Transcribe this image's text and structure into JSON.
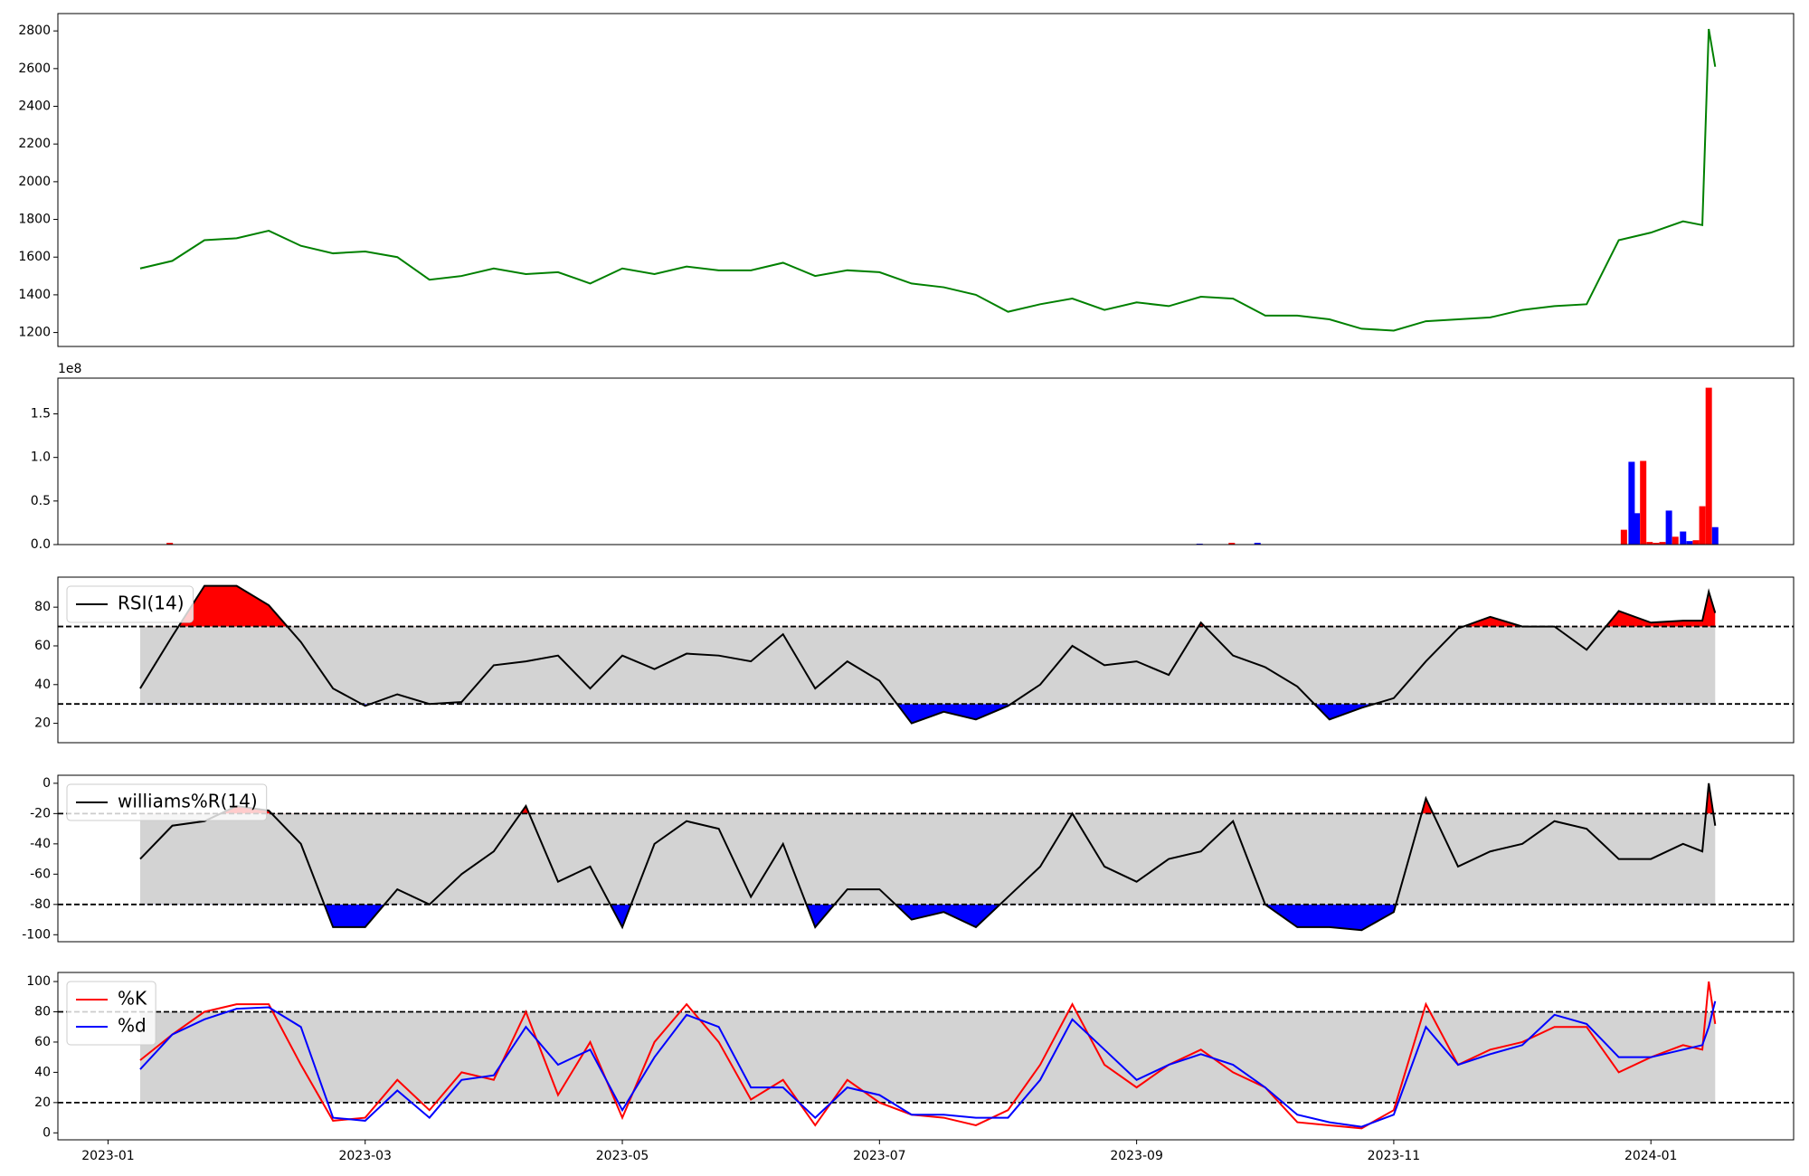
{
  "chart_data": [
    {
      "type": "line",
      "xlim": [
        -0.39,
        13.11
      ],
      "ylim": [
        1126,
        2892
      ],
      "yticks": [
        1200,
        1400,
        1600,
        1800,
        2000,
        2200,
        2400,
        2600,
        2800
      ],
      "x": [
        0.25,
        0.5,
        0.75,
        1,
        1.25,
        1.5,
        1.75,
        2,
        2.25,
        2.5,
        2.75,
        3,
        3.25,
        3.5,
        3.75,
        4,
        4.25,
        4.5,
        4.75,
        5,
        5.25,
        5.5,
        5.75,
        6,
        6.25,
        6.5,
        6.75,
        7,
        7.25,
        7.5,
        7.75,
        8,
        8.25,
        8.5,
        8.75,
        9,
        9.25,
        9.5,
        9.75,
        10,
        10.25,
        10.5,
        10.75,
        11,
        11.25,
        11.5,
        11.75,
        12,
        12.25,
        12.4,
        12.45,
        12.5
      ],
      "series": [
        {
          "color": "#008000",
          "values": [
            1540,
            1580,
            1690,
            1700,
            1740,
            1660,
            1620,
            1630,
            1600,
            1480,
            1500,
            1540,
            1510,
            1520,
            1460,
            1540,
            1510,
            1550,
            1530,
            1530,
            1570,
            1500,
            1530,
            1520,
            1460,
            1440,
            1400,
            1310,
            1350,
            1380,
            1320,
            1360,
            1340,
            1390,
            1380,
            1290,
            1290,
            1270,
            1220,
            1210,
            1260,
            1270,
            1280,
            1320,
            1340,
            1350,
            1690,
            1730,
            1790,
            1770,
            2810,
            2610
          ]
        }
      ]
    },
    {
      "type": "bar",
      "xlim": [
        -0.39,
        13.11
      ],
      "ylim": [
        0,
        191000000
      ],
      "offset_label": "1e8",
      "yticks": [
        {
          "value": 0,
          "label": "0.0"
        },
        {
          "value": 50000000,
          "label": "0.5"
        },
        {
          "value": 100000000,
          "label": "1.0"
        },
        {
          "value": 150000000,
          "label": "1.5"
        }
      ],
      "x": [
        0.48,
        8.49,
        8.74,
        8.94,
        11.79,
        11.85,
        11.89,
        11.94,
        11.99,
        12.04,
        12.09,
        12.14,
        12.19,
        12.25,
        12.3,
        12.35,
        12.4,
        12.45,
        12.5
      ],
      "values": [
        2000000,
        1000000,
        2000000,
        2000000,
        17000000,
        95000000,
        36000000,
        96000000,
        3000000,
        2000000,
        3000000,
        39000000,
        9000000,
        15000000,
        4000000,
        5000000,
        44000000,
        180000000,
        20000000
      ],
      "colors": [
        "#ff0000",
        "#0000ff",
        "#ff0000",
        "#0000ff",
        "#ff0000",
        "#0000ff",
        "#0000ff",
        "#ff0000",
        "#ff0000",
        "#ff0000",
        "#ff0000",
        "#0000ff",
        "#ff0000",
        "#0000ff",
        "#0000ff",
        "#ff0000",
        "#ff0000",
        "#ff0000",
        "#0000ff"
      ]
    },
    {
      "type": "line",
      "xlim": [
        -0.39,
        13.11
      ],
      "ylim": [
        10,
        95.5
      ],
      "yticks": [
        20,
        40,
        60,
        80
      ],
      "legend": "upper left",
      "upper": 70,
      "lower": 30,
      "band_color": "#d3d3d3",
      "over_color": "#ff0000",
      "under_color": "#0000ff",
      "x": [
        0.25,
        0.5,
        0.75,
        1,
        1.25,
        1.5,
        1.75,
        2,
        2.25,
        2.5,
        2.75,
        3,
        3.25,
        3.5,
        3.75,
        4,
        4.25,
        4.5,
        4.75,
        5,
        5.25,
        5.5,
        5.75,
        6,
        6.25,
        6.5,
        6.75,
        7,
        7.25,
        7.5,
        7.75,
        8,
        8.25,
        8.5,
        8.75,
        9,
        9.25,
        9.5,
        9.75,
        10,
        10.25,
        10.5,
        10.75,
        11,
        11.25,
        11.5,
        11.75,
        12,
        12.25,
        12.4,
        12.45,
        12.5
      ],
      "series": [
        {
          "name": "RSI(14)",
          "color": "#000000",
          "values": [
            38,
            65,
            91,
            91,
            81,
            62,
            38,
            29,
            35,
            30,
            31,
            50,
            52,
            55,
            38,
            55,
            48,
            56,
            55,
            52,
            66,
            38,
            52,
            42,
            20,
            26,
            22,
            29,
            40,
            60,
            50,
            52,
            45,
            72,
            55,
            49,
            39,
            22,
            28,
            33,
            52,
            69,
            75,
            70,
            70,
            58,
            78,
            72,
            73,
            73,
            88,
            77
          ]
        }
      ]
    },
    {
      "type": "line",
      "xlim": [
        -0.39,
        13.11
      ],
      "ylim": [
        -104.6,
        5.3
      ],
      "yticks": [
        0,
        -20,
        -40,
        -60,
        -80,
        -100
      ],
      "legend": "upper left",
      "upper": -20,
      "lower": -80,
      "band_color": "#d3d3d3",
      "over_color": "#ff0000",
      "under_color": "#0000ff",
      "x": [
        0.25,
        0.5,
        0.75,
        1,
        1.25,
        1.5,
        1.75,
        2,
        2.25,
        2.5,
        2.75,
        3,
        3.25,
        3.5,
        3.75,
        4,
        4.25,
        4.5,
        4.75,
        5,
        5.25,
        5.5,
        5.75,
        6,
        6.25,
        6.5,
        6.75,
        7,
        7.25,
        7.5,
        7.75,
        8,
        8.25,
        8.5,
        8.75,
        9,
        9.25,
        9.5,
        9.75,
        10,
        10.25,
        10.5,
        10.75,
        11,
        11.25,
        11.5,
        11.75,
        12,
        12.25,
        12.4,
        12.45,
        12.5
      ],
      "series": [
        {
          "name": "williams%R(14)",
          "color": "#000000",
          "values": [
            -50,
            -28,
            -25,
            -15,
            -18,
            -40,
            -95,
            -95,
            -70,
            -80,
            -60,
            -45,
            -15,
            -65,
            -55,
            -95,
            -40,
            -25,
            -30,
            -75,
            -40,
            -95,
            -70,
            -70,
            -90,
            -85,
            -95,
            -75,
            -55,
            -20,
            -55,
            -65,
            -50,
            -45,
            -25,
            -80,
            -95,
            -95,
            -97,
            -85,
            -10,
            -55,
            -45,
            -40,
            -25,
            -30,
            -50,
            -50,
            -40,
            -45,
            0,
            -28
          ]
        }
      ]
    },
    {
      "type": "line",
      "xlim": [
        -0.39,
        13.11
      ],
      "ylim": [
        -4.6,
        106
      ],
      "yticks": [
        0,
        20,
        40,
        60,
        80,
        100
      ],
      "legend": "upper left",
      "upper": 80,
      "lower": 20,
      "band_color": "#d3d3d3",
      "xticks": [
        {
          "value": 0,
          "label": "2023-01"
        },
        {
          "value": 2,
          "label": "2023-03"
        },
        {
          "value": 4,
          "label": "2023-05"
        },
        {
          "value": 6,
          "label": "2023-07"
        },
        {
          "value": 8,
          "label": "2023-09"
        },
        {
          "value": 10,
          "label": "2023-11"
        },
        {
          "value": 12,
          "label": "2024-01"
        }
      ],
      "x": [
        0.25,
        0.5,
        0.75,
        1,
        1.25,
        1.5,
        1.75,
        2,
        2.25,
        2.5,
        2.75,
        3,
        3.25,
        3.5,
        3.75,
        4,
        4.25,
        4.5,
        4.75,
        5,
        5.25,
        5.5,
        5.75,
        6,
        6.25,
        6.5,
        6.75,
        7,
        7.25,
        7.5,
        7.75,
        8,
        8.25,
        8.5,
        8.75,
        9,
        9.25,
        9.5,
        9.75,
        10,
        10.25,
        10.5,
        10.75,
        11,
        11.25,
        11.5,
        11.75,
        12,
        12.25,
        12.4,
        12.45,
        12.5
      ],
      "series": [
        {
          "name": "%K",
          "color": "#ff0000",
          "values": [
            48,
            65,
            80,
            85,
            85,
            45,
            8,
            10,
            35,
            15,
            40,
            35,
            80,
            25,
            60,
            10,
            60,
            85,
            60,
            22,
            35,
            5,
            35,
            20,
            12,
            10,
            5,
            15,
            45,
            85,
            45,
            30,
            45,
            55,
            40,
            30,
            7,
            5,
            3,
            15,
            85,
            45,
            55,
            60,
            70,
            70,
            40,
            50,
            58,
            55,
            100,
            72
          ]
        },
        {
          "name": "%d",
          "color": "#0000ff",
          "values": [
            42,
            65,
            75,
            82,
            83,
            70,
            10,
            8,
            28,
            10,
            35,
            38,
            70,
            45,
            55,
            15,
            50,
            78,
            70,
            30,
            30,
            10,
            30,
            25,
            12,
            12,
            10,
            10,
            35,
            75,
            55,
            35,
            45,
            52,
            45,
            30,
            12,
            7,
            4,
            12,
            70,
            45,
            52,
            58,
            78,
            72,
            50,
            50,
            55,
            58,
            70,
            87
          ]
        }
      ]
    }
  ]
}
